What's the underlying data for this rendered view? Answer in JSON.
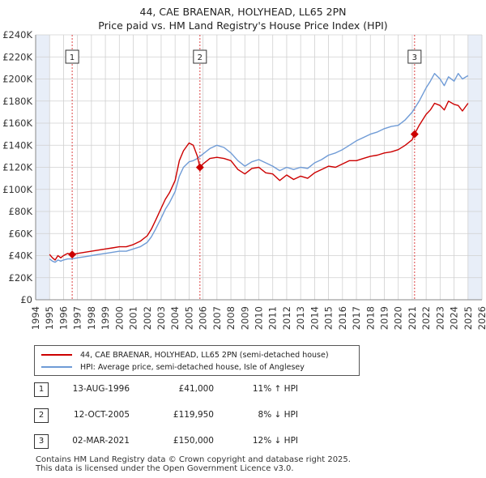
{
  "title": {
    "line1": "44, CAE BRAENAR, HOLYHEAD, LL65 2PN",
    "line2": "Price paid vs. HM Land Registry's House Price Index (HPI)"
  },
  "colors": {
    "property": "#cc0000",
    "hpi": "#6f9bd6",
    "band": "#e8eef8",
    "grid": "#d0d0d0",
    "marker_line": "#dd4444"
  },
  "legend": {
    "property_label": "44, CAE BRAENAR, HOLYHEAD, LL65 2PN (semi-detached house)",
    "hpi_label": "HPI: Average price, semi-detached house, Isle of Anglesey"
  },
  "sales": [
    {
      "num": "1",
      "date": "13-AUG-1996",
      "price": "£41,000",
      "hpi": "11% ↑ HPI"
    },
    {
      "num": "2",
      "date": "12-OCT-2005",
      "price": "£119,950",
      "hpi": "8% ↓ HPI"
    },
    {
      "num": "3",
      "date": "02-MAR-2021",
      "price": "£150,000",
      "hpi": "12% ↓ HPI"
    }
  ],
  "footer": {
    "line1": "Contains HM Land Registry data © Crown copyright and database right 2025.",
    "line2": "This data is licensed under the Open Government Licence v3.0."
  },
  "chart_data": {
    "type": "line",
    "xlim": [
      1994,
      2026
    ],
    "ylim": [
      0,
      240000
    ],
    "x_ticks": [
      1994,
      1995,
      1996,
      1997,
      1998,
      1999,
      2000,
      2001,
      2002,
      2003,
      2004,
      2005,
      2006,
      2007,
      2008,
      2009,
      2010,
      2011,
      2012,
      2013,
      2014,
      2015,
      2016,
      2017,
      2018,
      2019,
      2020,
      2021,
      2022,
      2023,
      2024,
      2025,
      2026
    ],
    "y_ticks": [
      {
        "v": 0,
        "label": "£0"
      },
      {
        "v": 20000,
        "label": "£20K"
      },
      {
        "v": 40000,
        "label": "£40K"
      },
      {
        "v": 60000,
        "label": "£60K"
      },
      {
        "v": 80000,
        "label": "£80K"
      },
      {
        "v": 100000,
        "label": "£100K"
      },
      {
        "v": 120000,
        "label": "£120K"
      },
      {
        "v": 140000,
        "label": "£140K"
      },
      {
        "v": 160000,
        "label": "£160K"
      },
      {
        "v": 180000,
        "label": "£180K"
      },
      {
        "v": 200000,
        "label": "£200K"
      },
      {
        "v": 220000,
        "label": "£220K"
      },
      {
        "v": 240000,
        "label": "£240K"
      }
    ],
    "grid": true,
    "shaded_ranges": [
      [
        1994,
        1995
      ],
      [
        2025,
        2026
      ]
    ],
    "sale_markers": [
      {
        "label": "1",
        "x": 1996.62,
        "y": 41000
      },
      {
        "label": "2",
        "x": 2005.78,
        "y": 119950
      },
      {
        "label": "3",
        "x": 2021.17,
        "y": 150000
      }
    ],
    "series": [
      {
        "name": "44, CAE BRAENAR, HOLYHEAD, LL65 2PN (semi-detached house)",
        "color": "#cc0000",
        "x": [
          1995.0,
          1995.2,
          1995.4,
          1995.6,
          1995.8,
          1996.0,
          1996.3,
          1996.62,
          1997.0,
          1997.5,
          1998.0,
          1998.5,
          1999.0,
          1999.5,
          2000.0,
          2000.5,
          2001.0,
          2001.5,
          2002.0,
          2002.3,
          2002.6,
          2003.0,
          2003.3,
          2003.6,
          2004.0,
          2004.3,
          2004.6,
          2005.0,
          2005.3,
          2005.6,
          2005.78,
          2006.0,
          2006.5,
          2007.0,
          2007.5,
          2008.0,
          2008.5,
          2009.0,
          2009.5,
          2010.0,
          2010.5,
          2011.0,
          2011.5,
          2012.0,
          2012.5,
          2013.0,
          2013.5,
          2014.0,
          2014.5,
          2015.0,
          2015.5,
          2016.0,
          2016.5,
          2017.0,
          2017.5,
          2018.0,
          2018.5,
          2019.0,
          2019.5,
          2020.0,
          2020.5,
          2021.0,
          2021.17,
          2021.5,
          2022.0,
          2022.3,
          2022.6,
          2023.0,
          2023.3,
          2023.6,
          2024.0,
          2024.3,
          2024.6,
          2025.0
        ],
        "y": [
          41000,
          38000,
          36000,
          40000,
          38000,
          40000,
          42000,
          41000,
          42000,
          43000,
          44000,
          45000,
          46000,
          47000,
          48000,
          48000,
          50000,
          53000,
          58000,
          64000,
          72000,
          83000,
          91000,
          97000,
          108000,
          126000,
          135000,
          142000,
          140000,
          130000,
          119950,
          123000,
          128000,
          129000,
          128000,
          126000,
          118000,
          114000,
          119000,
          120000,
          115000,
          114000,
          108000,
          113000,
          109000,
          112000,
          110000,
          115000,
          118000,
          121000,
          120000,
          123000,
          126000,
          126000,
          128000,
          130000,
          131000,
          133000,
          134000,
          136000,
          140000,
          145000,
          150000,
          158000,
          168000,
          172000,
          178000,
          176000,
          172000,
          180000,
          177000,
          176000,
          171000,
          178000
        ]
      },
      {
        "name": "HPI: Average price, semi-detached house, Isle of Anglesey",
        "color": "#6f9bd6",
        "x": [
          1995.0,
          1995.2,
          1995.4,
          1995.6,
          1995.8,
          1996.0,
          1996.3,
          1996.6,
          1997.0,
          1997.5,
          1998.0,
          1998.5,
          1999.0,
          1999.5,
          2000.0,
          2000.5,
          2001.0,
          2001.5,
          2002.0,
          2002.3,
          2002.6,
          2003.0,
          2003.3,
          2003.6,
          2004.0,
          2004.3,
          2004.6,
          2005.0,
          2005.3,
          2005.6,
          2006.0,
          2006.5,
          2007.0,
          2007.5,
          2008.0,
          2008.5,
          2009.0,
          2009.5,
          2010.0,
          2010.5,
          2011.0,
          2011.5,
          2012.0,
          2012.5,
          2013.0,
          2013.5,
          2014.0,
          2014.5,
          2015.0,
          2015.5,
          2016.0,
          2016.5,
          2017.0,
          2017.5,
          2018.0,
          2018.5,
          2019.0,
          2019.5,
          2020.0,
          2020.5,
          2021.0,
          2021.5,
          2022.0,
          2022.3,
          2022.6,
          2023.0,
          2023.3,
          2023.6,
          2024.0,
          2024.3,
          2024.6,
          2025.0
        ],
        "y": [
          37000,
          35000,
          34000,
          36000,
          35000,
          36000,
          37000,
          37000,
          38000,
          39000,
          40000,
          41000,
          42000,
          43000,
          44000,
          44000,
          46000,
          48000,
          52000,
          57000,
          64000,
          74000,
          82000,
          88000,
          98000,
          112000,
          120000,
          125000,
          126000,
          128000,
          132000,
          137000,
          140000,
          138000,
          133000,
          126000,
          121000,
          125000,
          127000,
          124000,
          121000,
          117000,
          120000,
          118000,
          120000,
          119000,
          124000,
          127000,
          131000,
          133000,
          136000,
          140000,
          144000,
          147000,
          150000,
          152000,
          155000,
          157000,
          158000,
          163000,
          170000,
          180000,
          192000,
          198000,
          205000,
          200000,
          194000,
          202000,
          198000,
          205000,
          200000,
          203000
        ]
      }
    ]
  }
}
